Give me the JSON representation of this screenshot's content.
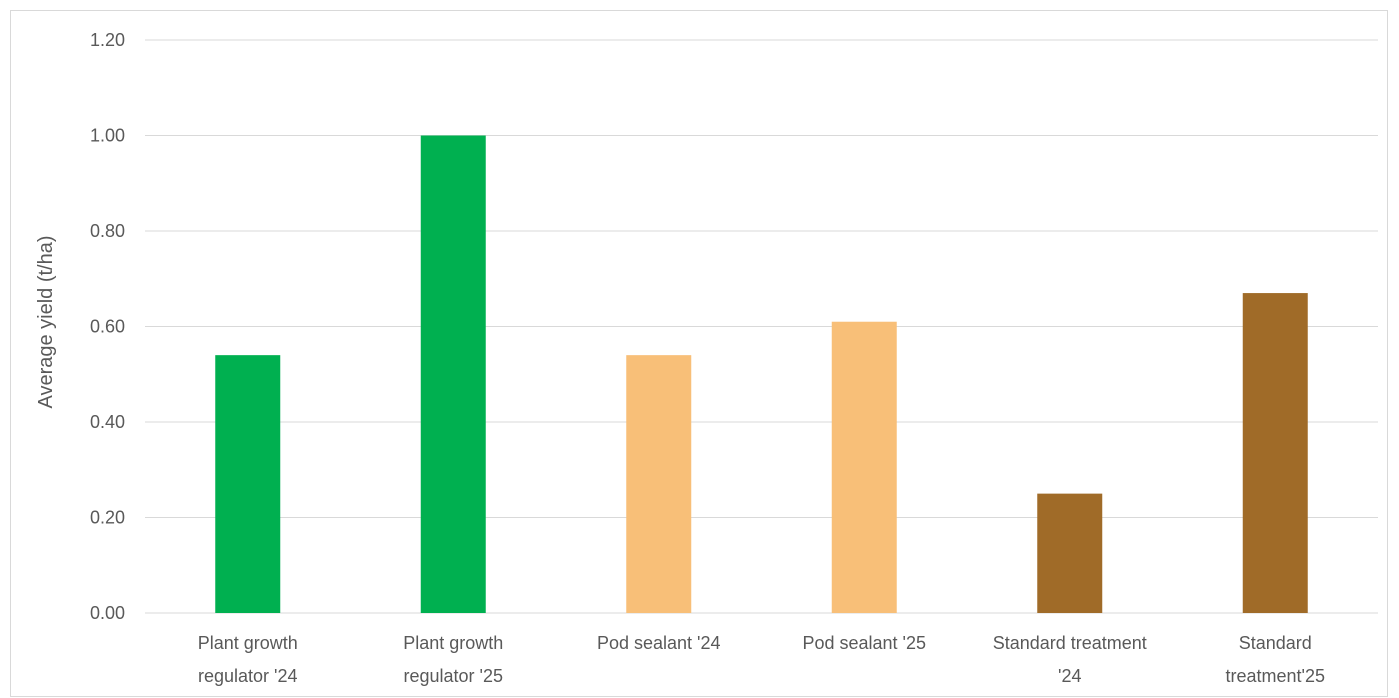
{
  "chart_data": {
    "type": "bar",
    "categories": [
      [
        "Plant growth",
        "regulator '24"
      ],
      [
        "Plant growth",
        "regulator '25"
      ],
      [
        "Pod sealant '24"
      ],
      [
        "Pod sealant '25"
      ],
      [
        "Standard treatment",
        "'24"
      ],
      [
        "Standard",
        "treatment'25"
      ]
    ],
    "values": [
      0.54,
      1.0,
      0.54,
      0.61,
      0.25,
      0.67
    ],
    "bar_colors": [
      "#00b050",
      "#00b050",
      "#f8bf78",
      "#f8bf78",
      "#a06b28",
      "#a06b28"
    ],
    "xlabel": "",
    "ylabel": "Average yield (t/ha)",
    "ylim": [
      0,
      1.2
    ],
    "yticks": [
      "0.00",
      "0.20",
      "0.40",
      "0.60",
      "0.80",
      "1.00",
      "1.20"
    ],
    "grid": true,
    "legend": "none"
  }
}
